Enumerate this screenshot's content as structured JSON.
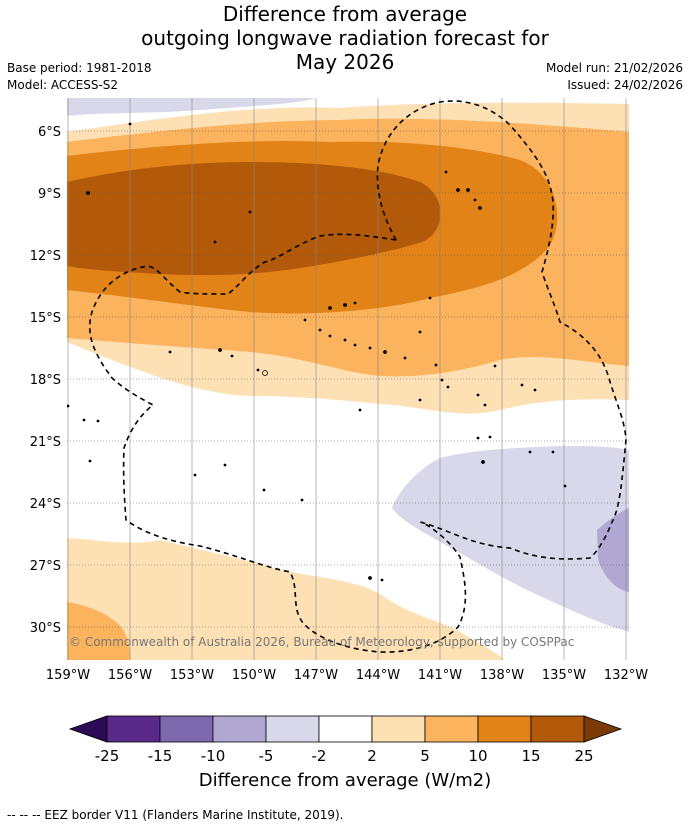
{
  "title": {
    "line1": "Difference from average",
    "line2": "outgoing longwave radiation forecast for",
    "line3": "May 2026"
  },
  "meta": {
    "base_period": "Base period: 1981-2018",
    "model": "Model: ACCESS-S2",
    "model_run": "Model run: 21/02/2026",
    "issued": "Issued: 24/02/2026"
  },
  "map": {
    "lat_labels": [
      "6°S",
      "9°S",
      "12°S",
      "15°S",
      "18°S",
      "21°S",
      "24°S",
      "27°S",
      "30°S"
    ],
    "lon_labels": [
      "159°W",
      "156°W",
      "153°W",
      "150°W",
      "147°W",
      "144°W",
      "141°W",
      "138°W",
      "135°W",
      "132°W"
    ],
    "copyright": "© Commonwealth of Australia 2026, Bureau of Meteorology, supported by COSPPac"
  },
  "colorbar": {
    "ticks": [
      "-25",
      "-15",
      "-10",
      "-5",
      "-2",
      "2",
      "5",
      "10",
      "15",
      "25"
    ],
    "colors": [
      "#5a2a8a",
      "#7d6aae",
      "#b0a8d2",
      "#d8d8ea",
      "#ffffff",
      "#fde0b4",
      "#fbb35e",
      "#e28317",
      "#b3590a"
    ],
    "under_color": "#2d0a55",
    "over_color": "#7a3a06",
    "label": "Difference from average (W/m2)"
  },
  "footer": "--  --  -- EEZ border V11 (Flanders Marine Institute, 2019).",
  "colors": {
    "light_orange": "#fde0b4",
    "orange": "#fbb35e",
    "dark_orange": "#e28317",
    "brown": "#b3590a",
    "lavender": "#d8d8ea",
    "purple_light": "#b0a8d2"
  }
}
